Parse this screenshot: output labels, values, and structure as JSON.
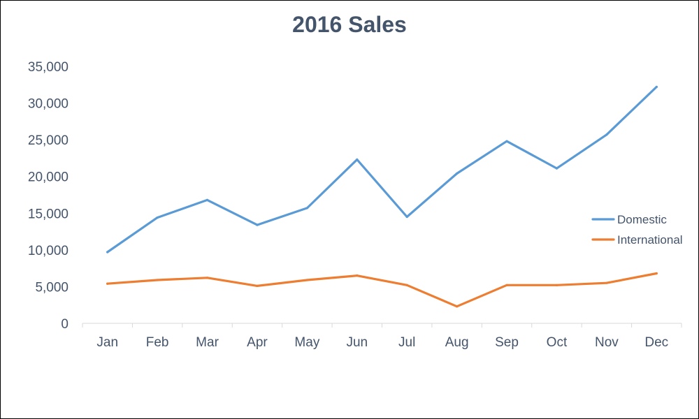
{
  "chart_data": {
    "type": "line",
    "title": "2016 Sales",
    "xlabel": "",
    "ylabel": "",
    "categories": [
      "Jan",
      "Feb",
      "Mar",
      "Apr",
      "May",
      "Jun",
      "Jul",
      "Aug",
      "Sep",
      "Oct",
      "Nov",
      "Dec"
    ],
    "ylim": [
      0,
      35000
    ],
    "yticks": [
      0,
      5000,
      10000,
      15000,
      20000,
      25000,
      30000,
      35000
    ],
    "ytick_labels": [
      "0",
      "5,000",
      "10,000",
      "15,000",
      "20,000",
      "25,000",
      "30,000",
      "35,000"
    ],
    "grid": false,
    "legend_position": "right",
    "series": [
      {
        "name": "Domestic",
        "color": "#5b9bd5",
        "values": [
          9700,
          14400,
          16800,
          13400,
          15700,
          22300,
          14500,
          20400,
          24800,
          21100,
          25700,
          32200
        ]
      },
      {
        "name": "International",
        "color": "#ed7d31",
        "values": [
          5400,
          5900,
          6200,
          5100,
          5900,
          6500,
          5200,
          2300,
          5200,
          5200,
          5500,
          6800
        ]
      }
    ]
  }
}
